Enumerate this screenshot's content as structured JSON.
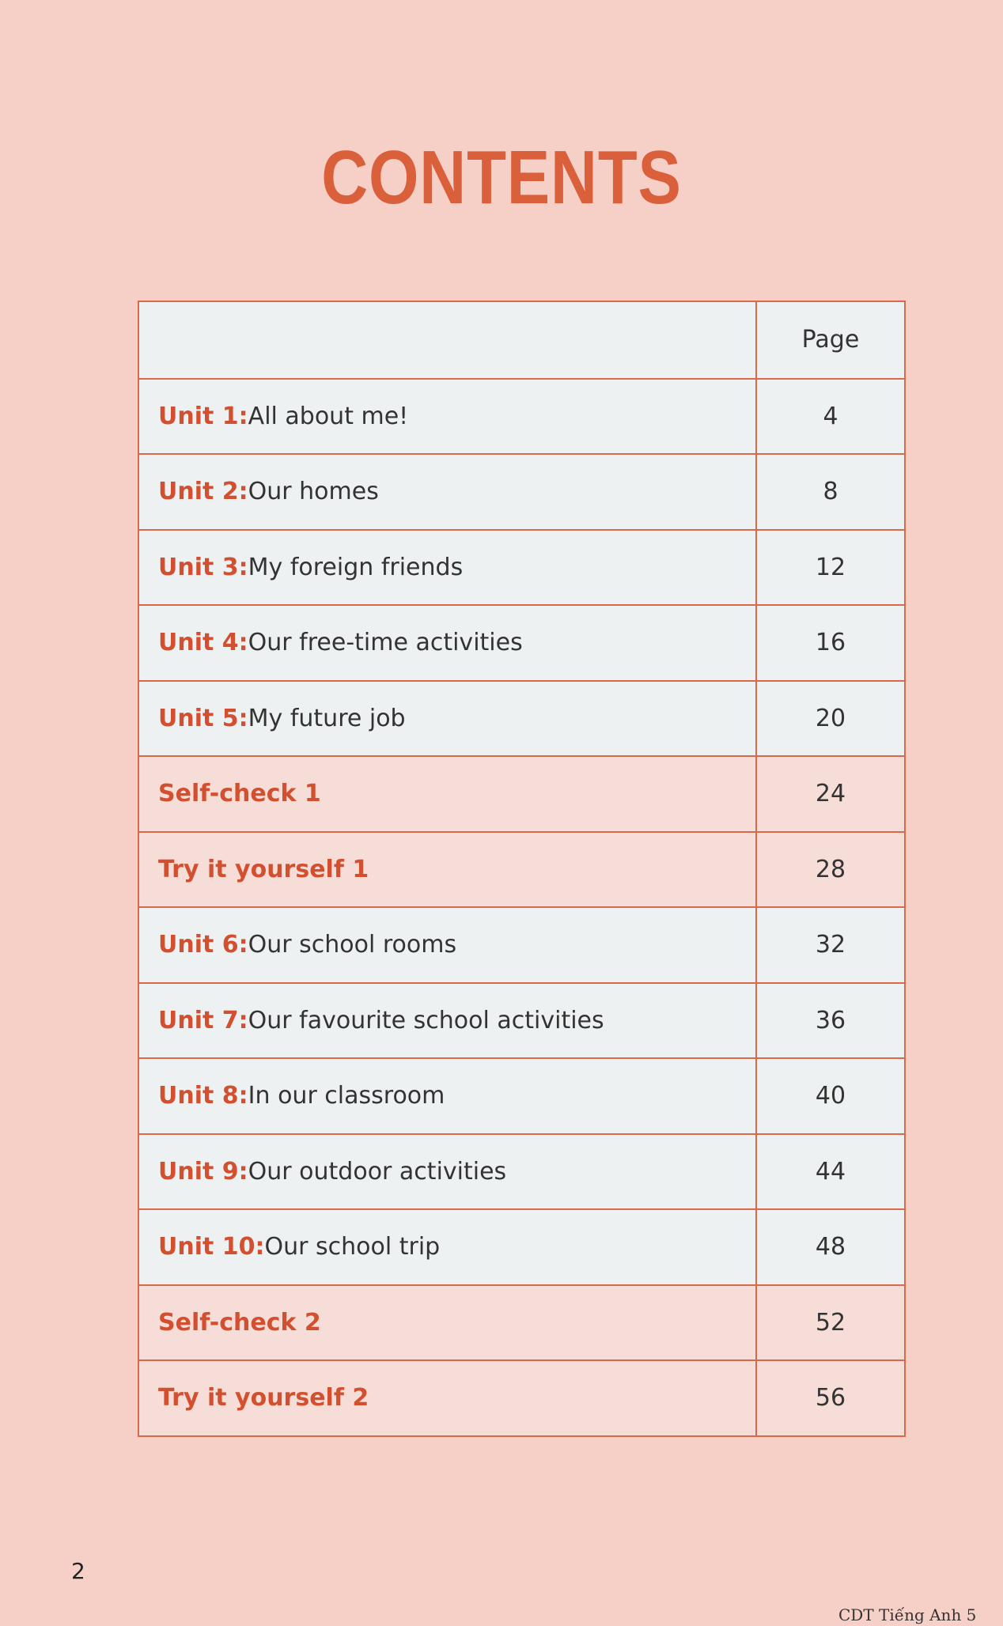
{
  "header": {
    "title": "CONTENTS"
  },
  "table": {
    "page_header": "Page",
    "rows": [
      {
        "prefix": "Unit 1:",
        "text": "All about me!",
        "page": 4
      },
      {
        "prefix": "Unit 2:",
        "text": "Our homes",
        "page": 8
      },
      {
        "prefix": "Unit 3:",
        "text": "My foreign friends",
        "page": 12
      },
      {
        "prefix": "Unit 4:",
        "text": "Our free-time activities",
        "page": 16
      },
      {
        "prefix": "Unit 5:",
        "text": "My future job",
        "page": 20
      },
      {
        "prefix": "Self-check 1",
        "page": 24
      },
      {
        "prefix": "Try it yourself 1",
        "page": 28
      },
      {
        "prefix": "Unit 6:",
        "text": "Our school rooms",
        "page": 32
      },
      {
        "prefix": "Unit 7:",
        "text": "Our favourite school activities",
        "page": 36
      },
      {
        "prefix": "Unit 8:",
        "text": "In our classroom",
        "page": 40
      },
      {
        "prefix": "Unit 9:",
        "text": "Our outdoor activities",
        "page": 44
      },
      {
        "prefix": "Unit 10:",
        "text": "Our school trip",
        "page": 48
      },
      {
        "prefix": "Self-check 2",
        "page": 52
      },
      {
        "prefix": "Try it yourself 2",
        "page": 56
      }
    ]
  },
  "footer": {
    "page_number": "2",
    "book": "CDT Tiếng Anh 5"
  }
}
